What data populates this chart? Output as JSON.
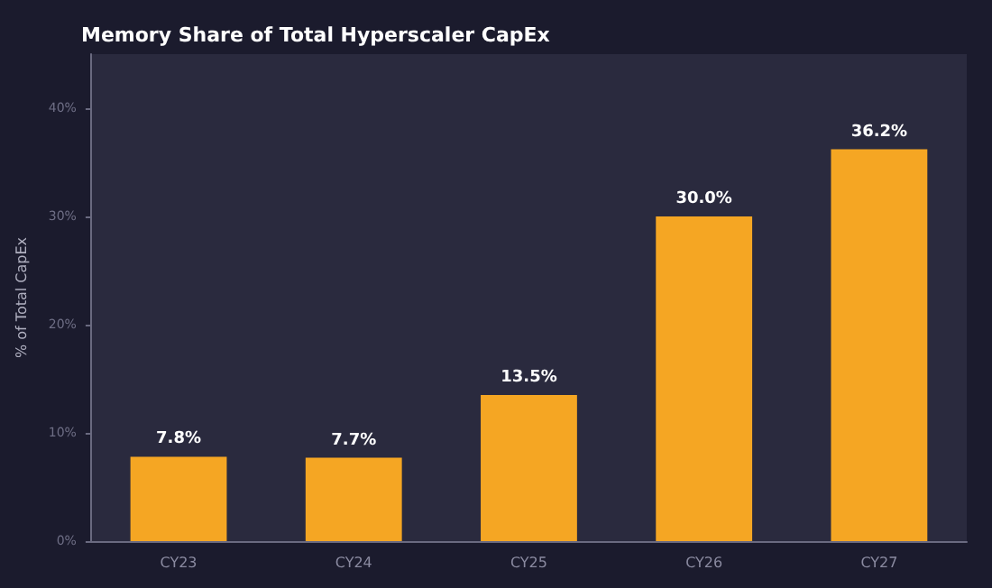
{
  "chart_data": {
    "type": "bar",
    "title": "Memory Share of Total Hyperscaler CapEx",
    "ylabel": "% of Total CapEx",
    "categories": [
      "CY23",
      "CY24",
      "CY25",
      "CY26",
      "CY27"
    ],
    "values": [
      7.8,
      7.7,
      13.5,
      30.0,
      36.2
    ],
    "color": "#f5a623",
    "value_labels": [
      "7.8%",
      "7.7%",
      "13.5%",
      "30.0%",
      "36.2%"
    ],
    "ylim": [
      0,
      45
    ],
    "yticks": [
      {
        "value": 0,
        "label": "0%"
      },
      {
        "value": 10,
        "label": "10%"
      },
      {
        "value": 20,
        "label": "20%"
      },
      {
        "value": 30,
        "label": "30%"
      },
      {
        "value": 40,
        "label": "40%"
      }
    ],
    "grid": false
  }
}
